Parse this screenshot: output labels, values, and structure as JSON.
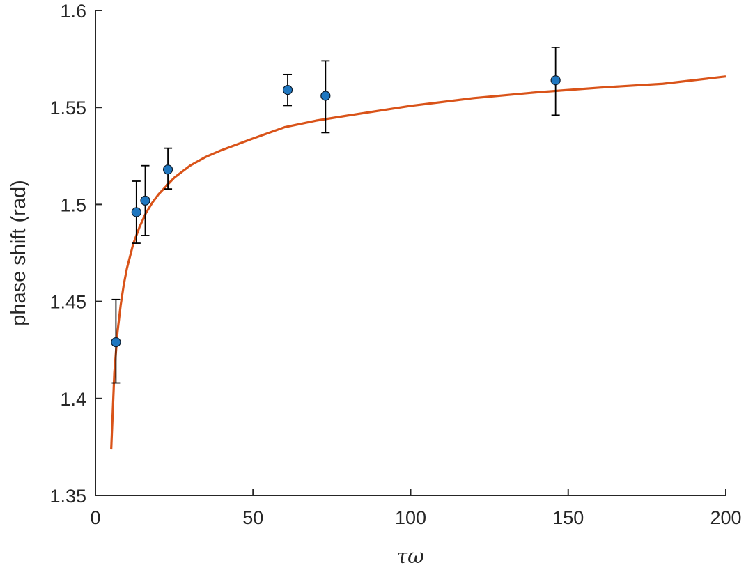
{
  "chart_data": {
    "type": "scatter",
    "xlabel": "τω",
    "ylabel": "phase shift (rad)",
    "xlim": [
      0,
      200
    ],
    "ylim": [
      1.35,
      1.6
    ],
    "x_ticks": [
      "0",
      "50",
      "100",
      "150",
      "200"
    ],
    "y_ticks": [
      "1.35",
      "1.4",
      "1.45",
      "1.5",
      "1.55",
      "1.6"
    ],
    "grid": false,
    "legend": "none",
    "series": [
      {
        "type": "scatter",
        "color": "#1f77c0",
        "error_color": "#000000",
        "points": [
          {
            "x": 6.5,
            "y": 1.429,
            "err_low": 1.408,
            "err_high": 1.451
          },
          {
            "x": 13,
            "y": 1.496,
            "err_low": 1.48,
            "err_high": 1.512
          },
          {
            "x": 15.8,
            "y": 1.502,
            "err_low": 1.484,
            "err_high": 1.52
          },
          {
            "x": 23,
            "y": 1.518,
            "err_low": 1.508,
            "err_high": 1.529
          },
          {
            "x": 61,
            "y": 1.559,
            "err_low": 1.551,
            "err_high": 1.567
          },
          {
            "x": 73,
            "y": 1.556,
            "err_low": 1.537,
            "err_high": 1.574
          },
          {
            "x": 146,
            "y": 1.564,
            "err_low": 1.546,
            "err_high": 1.581
          }
        ]
      },
      {
        "type": "line",
        "color": "#d95319",
        "x": [
          5,
          6,
          7,
          8,
          9,
          10,
          12,
          14,
          16,
          18,
          20,
          25,
          30,
          35,
          40,
          50,
          60,
          70,
          80,
          100,
          120,
          140,
          160,
          180,
          200
        ],
        "y": [
          1.3737,
          1.4134,
          1.4342,
          1.448,
          1.4587,
          1.4671,
          1.4797,
          1.4884,
          1.4955,
          1.5008,
          1.5052,
          1.5138,
          1.52,
          1.5245,
          1.528,
          1.534,
          1.5398,
          1.5432,
          1.5458,
          1.5508,
          1.5548,
          1.5578,
          1.5602,
          1.5622,
          1.566
        ]
      }
    ]
  }
}
